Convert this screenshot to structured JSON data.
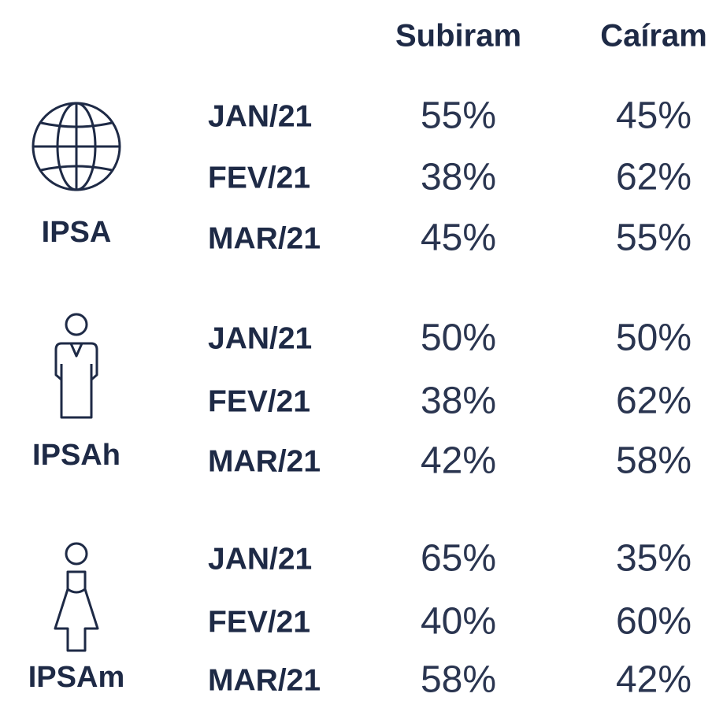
{
  "header": {
    "columns": [
      "Subiram",
      "Caíram"
    ]
  },
  "groups": [
    {
      "label": "IPSA",
      "rows": [
        {
          "month": "JAN/21",
          "values": [
            "55%",
            "45%"
          ]
        },
        {
          "month": "FEV/21",
          "values": [
            "38%",
            "62%"
          ]
        },
        {
          "month": "MAR/21",
          "values": [
            "45%",
            "55%"
          ]
        }
      ]
    },
    {
      "label": "IPSAh",
      "rows": [
        {
          "month": "JAN/21",
          "values": [
            "50%",
            "50%"
          ]
        },
        {
          "month": "FEV/21",
          "values": [
            "38%",
            "62%"
          ]
        },
        {
          "month": "MAR/21",
          "values": [
            "42%",
            "58%"
          ]
        }
      ]
    },
    {
      "label": "IPSAm",
      "rows": [
        {
          "month": "JAN/21",
          "values": [
            "65%",
            "35%"
          ]
        },
        {
          "month": "FEV/21",
          "values": [
            "40%",
            "60%"
          ]
        },
        {
          "month": "MAR/21",
          "values": [
            "58%",
            "42%"
          ]
        }
      ]
    }
  ]
}
